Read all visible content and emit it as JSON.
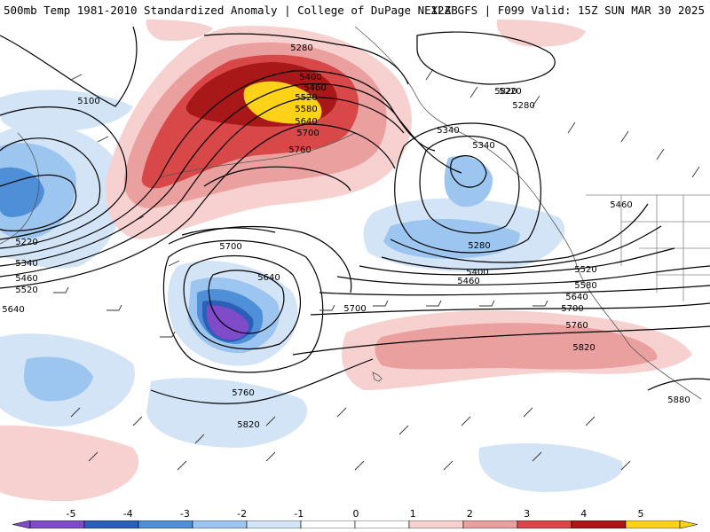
{
  "header": {
    "left_title": "500mb Temp 1981-2010 Standardized Anomaly | College of DuPage NEXLAB",
    "right_title": "12Z GFS | F099 Valid: 15Z SUN MAR 30 2025"
  },
  "colors": {
    "anom_neg5": "#7f4bc8",
    "anom_neg4": "#2b5fb8",
    "anom_neg3": "#5a9ee0",
    "anom_neg2": "#9cc6ef",
    "anom_neg1": "#d2e4f6",
    "anom_pos1": "#f7d0d0",
    "anom_pos2": "#eba0a0",
    "anom_pos3": "#d84848",
    "anom_pos4": "#a81818",
    "anom_pos5": "#ffd21a",
    "contour": "#000000",
    "coast": "#555555"
  },
  "colorbar": {
    "ticks": [
      "-5",
      "-4",
      "-3",
      "-2",
      "-1",
      "0",
      "1",
      "2",
      "3",
      "4",
      "5"
    ],
    "segment_colors": [
      "#7f4bc8",
      "#2b5fb8",
      "#4f8fd8",
      "#9cc6ef",
      "#d2e4f6",
      "#ffffff",
      "#ffffff",
      "#f7d0d0",
      "#eba0a0",
      "#d84848",
      "#a81818",
      "#ffd21a"
    ]
  },
  "contour_labels": [
    "5100",
    "5280",
    "5400",
    "5460",
    "5520",
    "5580",
    "5640",
    "5700",
    "5760",
    "5220",
    "5280",
    "5340",
    "5340",
    "5460",
    "5280",
    "5400",
    "5460",
    "5520",
    "5580",
    "5640",
    "5700",
    "5760",
    "5820",
    "5220",
    "5340",
    "5460",
    "5520",
    "5640",
    "5700",
    "5640",
    "5760",
    "5820",
    "5700",
    "5820",
    "5880"
  ]
}
